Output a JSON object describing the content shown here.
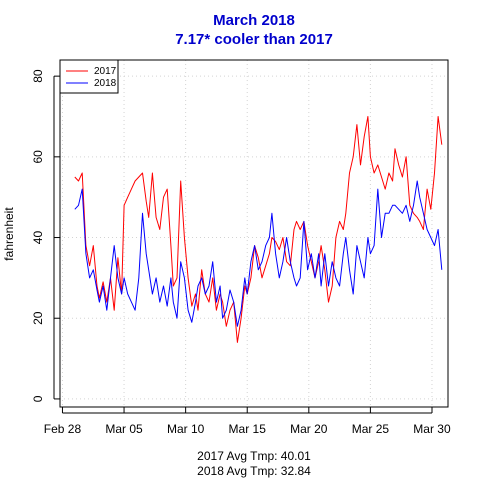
{
  "chart_data": {
    "type": "line",
    "title": "March 2018",
    "subtitle": "7.17* cooler than 2017",
    "xlabel": "",
    "ylabel": "fahrenheit",
    "x_tick_labels": [
      "Feb 28",
      "Mar 05",
      "Mar 10",
      "Mar 15",
      "Mar 20",
      "Mar 25",
      "Mar 30"
    ],
    "x_tick_days": [
      0,
      5,
      10,
      15,
      20,
      25,
      30
    ],
    "xlim": [
      -0.2,
      31.3
    ],
    "ylim": [
      -2,
      84
    ],
    "y_ticks": [
      0,
      20,
      40,
      60,
      80
    ],
    "grid": true,
    "legend_position": "top-left",
    "series": [
      {
        "name": "2017",
        "color": "#ff0000",
        "x": [
          1.0,
          1.3,
          1.6,
          1.9,
          2.2,
          2.5,
          2.8,
          3.0,
          3.3,
          3.6,
          3.9,
          4.2,
          4.5,
          4.8,
          5.0,
          5.3,
          5.6,
          5.9,
          6.2,
          6.5,
          6.8,
          7.0,
          7.3,
          7.6,
          7.9,
          8.2,
          8.5,
          8.8,
          9.0,
          9.3,
          9.6,
          9.9,
          10.2,
          10.5,
          10.8,
          11.0,
          11.3,
          11.6,
          11.9,
          12.2,
          12.5,
          12.8,
          13.0,
          13.3,
          13.6,
          13.9,
          14.2,
          14.5,
          14.8,
          15.0,
          15.3,
          15.6,
          15.9,
          16.2,
          16.5,
          16.8,
          17.0,
          17.3,
          17.6,
          17.9,
          18.2,
          18.5,
          18.8,
          19.0,
          19.3,
          19.6,
          19.9,
          20.2,
          20.5,
          20.8,
          21.0,
          21.3,
          21.6,
          21.9,
          22.2,
          22.5,
          22.8,
          23.0,
          23.3,
          23.6,
          23.9,
          24.2,
          24.5,
          24.8,
          25.0,
          25.3,
          25.6,
          25.9,
          26.2,
          26.5,
          26.8,
          27.0,
          27.3,
          27.6,
          27.9,
          28.2,
          28.5,
          28.8,
          29.0,
          29.3,
          29.6,
          29.9,
          30.2,
          30.5,
          30.8
        ],
        "y": [
          55,
          54,
          56,
          38,
          33,
          38,
          28,
          25,
          29,
          24,
          30,
          22,
          35,
          26,
          48,
          50,
          52,
          54,
          55,
          56,
          49,
          45,
          56,
          45,
          42,
          50,
          52,
          38,
          28,
          30,
          54,
          40,
          30,
          23,
          26,
          22,
          32,
          26,
          24,
          30,
          22,
          26,
          24,
          18,
          22,
          24,
          14,
          20,
          28,
          26,
          30,
          38,
          35,
          30,
          33,
          36,
          40,
          39,
          37,
          40,
          34,
          33,
          42,
          44,
          42,
          44,
          38,
          34,
          30,
          34,
          38,
          32,
          24,
          28,
          40,
          44,
          42,
          46,
          56,
          60,
          68,
          58,
          65,
          70,
          60,
          56,
          58,
          55,
          52,
          56,
          54,
          62,
          58,
          55,
          60,
          48,
          46,
          45,
          44,
          42,
          52,
          47,
          56,
          70,
          63
        ]
      },
      {
        "name": "2018",
        "color": "#0000ff",
        "x": [
          1.0,
          1.3,
          1.6,
          1.9,
          2.2,
          2.5,
          2.8,
          3.0,
          3.3,
          3.6,
          3.9,
          4.2,
          4.5,
          4.8,
          5.0,
          5.3,
          5.6,
          5.9,
          6.2,
          6.5,
          6.8,
          7.0,
          7.3,
          7.6,
          7.9,
          8.2,
          8.5,
          8.8,
          9.0,
          9.3,
          9.6,
          9.9,
          10.2,
          10.5,
          10.8,
          11.0,
          11.3,
          11.6,
          11.9,
          12.2,
          12.5,
          12.8,
          13.0,
          13.3,
          13.6,
          13.9,
          14.2,
          14.5,
          14.8,
          15.0,
          15.3,
          15.6,
          15.9,
          16.2,
          16.5,
          16.8,
          17.0,
          17.3,
          17.6,
          17.9,
          18.2,
          18.5,
          18.8,
          19.0,
          19.3,
          19.6,
          19.9,
          20.2,
          20.5,
          20.8,
          21.0,
          21.3,
          21.6,
          21.9,
          22.2,
          22.5,
          22.8,
          23.0,
          23.3,
          23.6,
          23.9,
          24.2,
          24.5,
          24.8,
          25.0,
          25.3,
          25.6,
          25.9,
          26.2,
          26.5,
          26.8,
          27.0,
          27.3,
          27.6,
          27.9,
          28.2,
          28.5,
          28.8,
          29.0,
          29.3,
          29.6,
          29.9,
          30.2,
          30.5,
          30.8
        ],
        "y": [
          47,
          48,
          52,
          36,
          30,
          32,
          27,
          24,
          28,
          22,
          30,
          38,
          30,
          26,
          30,
          26,
          24,
          22,
          30,
          46,
          36,
          32,
          26,
          30,
          24,
          28,
          23,
          30,
          24,
          20,
          34,
          30,
          22,
          19,
          24,
          28,
          30,
          26,
          28,
          34,
          24,
          28,
          20,
          22,
          27,
          24,
          18,
          22,
          30,
          26,
          34,
          38,
          32,
          34,
          38,
          40,
          46,
          36,
          30,
          34,
          40,
          34,
          30,
          28,
          30,
          44,
          32,
          36,
          30,
          36,
          28,
          36,
          28,
          34,
          30,
          28,
          36,
          40,
          32,
          26,
          38,
          34,
          30,
          40,
          36,
          38,
          52,
          40,
          46,
          46,
          48,
          48,
          47,
          46,
          48,
          44,
          48,
          54,
          50,
          46,
          42,
          40,
          38,
          42,
          32
        ]
      }
    ]
  },
  "footer": {
    "line1": "2017 Avg Tmp: 40.01",
    "line2": "2018 Avg Tmp: 32.84"
  }
}
